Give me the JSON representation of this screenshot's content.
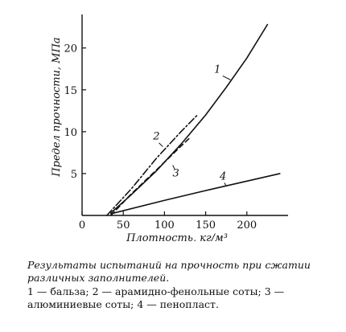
{
  "chart_data": {
    "type": "line",
    "xlabel": "Плотность, кг/м³",
    "ylabel": "Предел прочности, МПа",
    "xlim": [
      0,
      250
    ],
    "ylim": [
      0,
      24
    ],
    "x_ticks": [
      0,
      50,
      100,
      150,
      200
    ],
    "y_ticks": [
      5,
      10,
      15,
      20
    ],
    "grid": false,
    "series": [
      {
        "name": "1",
        "style": "solid",
        "x": [
          35,
          60,
          90,
          120,
          150,
          175,
          200,
          225
        ],
        "y": [
          0.3,
          2.5,
          5.3,
          8.5,
          12.0,
          15.3,
          18.8,
          22.8
        ]
      },
      {
        "name": "2",
        "style": "dash-dot",
        "x": [
          30,
          60,
          90,
          120,
          140
        ],
        "y": [
          0,
          3.2,
          6.8,
          10.0,
          12.0
        ]
      },
      {
        "name": "3",
        "style": "dashed",
        "x": [
          35,
          60,
          90,
          115,
          130
        ],
        "y": [
          0,
          2.6,
          5.4,
          7.8,
          9.2
        ]
      },
      {
        "name": "4",
        "style": "solid",
        "x": [
          35,
          100,
          160,
          240
        ],
        "y": [
          0.2,
          1.8,
          3.2,
          5.0
        ]
      }
    ]
  },
  "caption": {
    "title": "Результаты испытаний на прочность при сжатии различных заполнителей.",
    "legend": "1 — бальза;  2 — арамидно-фенольные соты;  3 — алюминиевые соты; 4 — пенопласт."
  }
}
